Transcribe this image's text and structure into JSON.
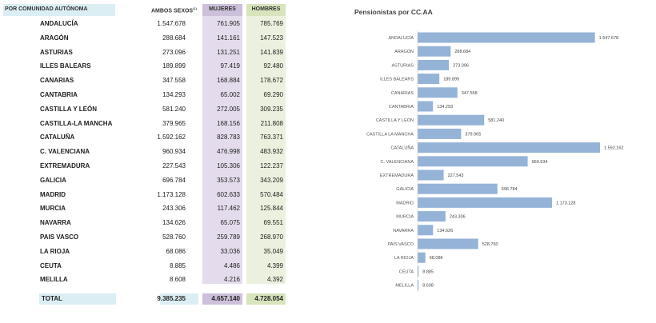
{
  "table": {
    "headers": {
      "region": "POR COMUNIDAD AUTÓNOMA",
      "both": "AMBOS SEXOS",
      "both_sup": "(1)",
      "women": "MUJERES",
      "men": "HOMBRES"
    },
    "rows": [
      {
        "region": "ANDALUCÍA",
        "both": "1.547.678",
        "women": "761.905",
        "men": "785.769"
      },
      {
        "region": "ARAGÓN",
        "both": "288.684",
        "women": "141.161",
        "men": "147.523"
      },
      {
        "region": "ASTURIAS",
        "both": "273.096",
        "women": "131.251",
        "men": "141.839"
      },
      {
        "region": "ILLES BALEARS",
        "both": "189.899",
        "women": "97.419",
        "men": "92.480"
      },
      {
        "region": "CANARIAS",
        "both": "347.558",
        "women": "168.884",
        "men": "178.672"
      },
      {
        "region": "CANTABRIA",
        "both": "134.293",
        "women": "65.002",
        "men": "69.290"
      },
      {
        "region": "CASTILLA Y LEÓN",
        "both": "581.240",
        "women": "272.005",
        "men": "309.235"
      },
      {
        "region": "CASTILLA-LA MANCHA",
        "both": "379.965",
        "women": "168.156",
        "men": "211.808"
      },
      {
        "region": "CATALUÑA",
        "both": "1.592.162",
        "women": "828.783",
        "men": "763.371"
      },
      {
        "region": "C. VALENCIANA",
        "both": "960.934",
        "women": "476.998",
        "men": "483.932"
      },
      {
        "region": "EXTREMADURA",
        "both": "227.543",
        "women": "105.306",
        "men": "122.237"
      },
      {
        "region": "GALICIA",
        "both": "696.784",
        "women": "353.573",
        "men": "343.209"
      },
      {
        "region": "MADRID",
        "both": "1.173.128",
        "women": "602.633",
        "men": "570.484"
      },
      {
        "region": "MURCIA",
        "both": "243.306",
        "women": "117.462",
        "men": "125.844"
      },
      {
        "region": "NAVARRA",
        "both": "134.626",
        "women": "65.075",
        "men": "69.551"
      },
      {
        "region": "PAIS VASCO",
        "both": "528.760",
        "women": "259.789",
        "men": "268.970"
      },
      {
        "region": "LA RIOJA",
        "both": "68.086",
        "women": "33.036",
        "men": "35.049"
      },
      {
        "region": "CEUTA",
        "both": "8.885",
        "women": "4.486",
        "men": "4.399"
      },
      {
        "region": "MELILLA",
        "both": "8.608",
        "women": "4.216",
        "men": "4.392"
      }
    ],
    "total": {
      "label": "TOTAL",
      "both": "9.385.235",
      "women": "4.657.140",
      "men": "4.728.054"
    },
    "colors": {
      "region_header": "#dbeef4",
      "women": "#e4dcec",
      "women_header": "#ccc0da",
      "men": "#ebf1de",
      "men_header": "#d7e4bc",
      "total_women": "#ccc0da",
      "total_men": "#d7e4bc"
    }
  },
  "chart_data": {
    "type": "bar",
    "orientation": "horizontal",
    "title": "Pensionistas por CC.AA",
    "categories": [
      "ANDALUCÍA",
      "ARAGÓN",
      "ASTURIAS",
      "ILLES BALEARS",
      "CANARIAS",
      "CANTABRIA",
      "CASTILLA Y LEÓN",
      "CASTILLA LA MANCHA",
      "CATALUÑA",
      "C. VALENCIANA",
      "EXTREMADURA",
      "GALICIA",
      "MADRID",
      "MURCIA",
      "NAVARRA",
      "PAIS VASCO",
      "LA RIOJA",
      "CEUTA",
      "MELILLA"
    ],
    "values": [
      1547678,
      288684,
      273096,
      189899,
      347558,
      134293,
      581240,
      379965,
      1592162,
      960934,
      227543,
      696784,
      1173128,
      243306,
      134626,
      528760,
      68086,
      8885,
      8608
    ],
    "labels": [
      "1.547.678",
      "288.684",
      "273.096",
      "189.899",
      "347.558",
      "134.293",
      "581.240",
      "379.965",
      "1.592.162",
      "960.934",
      "227.543",
      "696.784",
      "1.173.128",
      "243.306",
      "134.626",
      "528.760",
      "68.086",
      "8.885",
      "8.608"
    ],
    "bar_color": "#95b3d7",
    "grid": false,
    "legend": "none"
  }
}
